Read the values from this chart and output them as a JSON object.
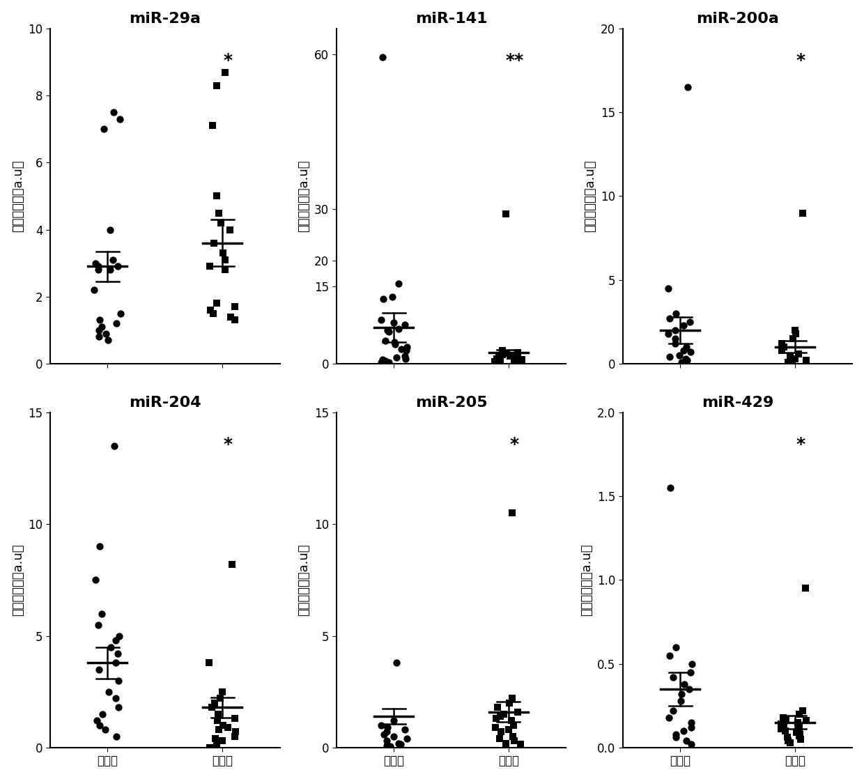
{
  "panels": [
    {
      "title": "miR-29a",
      "ylim": [
        0,
        10
      ],
      "yticks": [
        0,
        2,
        4,
        6,
        8,
        10
      ],
      "significance": "*",
      "group1": [
        7.0,
        7.3,
        7.5,
        4.0,
        2.8,
        2.9,
        3.0,
        2.9,
        2.8,
        3.1,
        2.2,
        1.5,
        1.2,
        1.3,
        1.0,
        0.8,
        1.1,
        0.7,
        0.9
      ],
      "group2": [
        8.3,
        8.7,
        7.1,
        5.0,
        4.5,
        4.2,
        4.0,
        3.6,
        3.3,
        3.1,
        2.9,
        2.8,
        1.5,
        1.6,
        1.7,
        1.3,
        1.4,
        1.8
      ],
      "mean1": 2.9,
      "sem1": 0.45,
      "mean2": 3.6,
      "sem2": 0.7
    },
    {
      "title": "miR-141",
      "ylim": [
        0,
        65
      ],
      "yticks": [
        0,
        15,
        20,
        30,
        60
      ],
      "significance": "**",
      "group1": [
        59.5,
        15.5,
        13.0,
        12.5,
        8.0,
        8.5,
        7.5,
        6.5,
        6.8,
        6.2,
        4.2,
        3.8,
        4.5,
        3.2,
        2.8,
        2.5,
        1.5,
        1.2,
        1.0,
        0.8,
        0.5,
        0.3,
        0.2
      ],
      "group2": [
        29.0,
        2.5,
        2.2,
        2.0,
        1.8,
        1.5,
        1.3,
        1.2,
        1.0,
        0.8,
        0.7,
        0.5,
        0.4,
        0.3,
        0.2,
        0.1
      ],
      "mean1": 7.0,
      "sem1": 2.8,
      "mean2": 2.2,
      "sem2": 0.5
    },
    {
      "title": "miR-200a",
      "ylim": [
        0,
        20
      ],
      "yticks": [
        0,
        5,
        10,
        15,
        20
      ],
      "significance": "*",
      "group1": [
        16.5,
        4.5,
        3.0,
        2.7,
        2.5,
        2.3,
        2.0,
        1.8,
        1.5,
        1.2,
        1.0,
        0.8,
        0.7,
        0.5,
        0.4,
        0.3,
        0.2,
        0.1
      ],
      "group2": [
        9.0,
        2.0,
        1.8,
        1.5,
        1.2,
        1.0,
        0.8,
        0.6,
        0.4,
        0.3,
        0.2,
        0.1,
        0.05
      ],
      "mean1": 2.0,
      "sem1": 0.8,
      "mean2": 1.0,
      "sem2": 0.35
    },
    {
      "title": "miR-204",
      "ylim": [
        0,
        15
      ],
      "yticks": [
        0,
        5,
        10,
        15
      ],
      "significance": "*",
      "group1": [
        13.5,
        9.0,
        7.5,
        6.0,
        5.5,
        5.0,
        4.8,
        4.5,
        4.2,
        3.8,
        3.5,
        3.0,
        2.5,
        2.2,
        1.8,
        1.5,
        1.2,
        1.0,
        0.8,
        0.5
      ],
      "group2": [
        8.2,
        3.8,
        2.5,
        2.2,
        2.0,
        1.8,
        1.5,
        1.3,
        1.2,
        1.0,
        0.9,
        0.8,
        0.7,
        0.5,
        0.4,
        0.3,
        0.2,
        0.1,
        0.0
      ],
      "mean1": 3.8,
      "sem1": 0.7,
      "mean2": 1.8,
      "sem2": 0.45
    },
    {
      "title": "miR-205",
      "ylim": [
        0,
        15
      ],
      "yticks": [
        0,
        5,
        10,
        15
      ],
      "significance": "*",
      "group1": [
        3.8,
        1.2,
        1.0,
        0.9,
        0.8,
        0.7,
        0.6,
        0.5,
        0.4,
        0.3,
        0.2,
        0.15,
        0.1,
        0.08,
        0.05
      ],
      "group2": [
        10.5,
        2.2,
        2.0,
        1.8,
        1.6,
        1.5,
        1.4,
        1.3,
        1.2,
        1.0,
        0.9,
        0.8,
        0.7,
        0.5,
        0.4,
        0.3,
        0.2,
        0.15
      ],
      "mean1": 1.4,
      "sem1": 0.35,
      "mean2": 1.6,
      "sem2": 0.45
    },
    {
      "title": "miR-429",
      "ylim": [
        0,
        2.0
      ],
      "yticks": [
        0.0,
        0.5,
        1.0,
        1.5,
        2.0
      ],
      "significance": "*",
      "group1": [
        1.55,
        0.6,
        0.55,
        0.5,
        0.45,
        0.42,
        0.38,
        0.35,
        0.32,
        0.28,
        0.22,
        0.18,
        0.15,
        0.12,
        0.1,
        0.08,
        0.06,
        0.04,
        0.02
      ],
      "group2": [
        0.95,
        0.22,
        0.2,
        0.18,
        0.17,
        0.16,
        0.15,
        0.14,
        0.13,
        0.12,
        0.11,
        0.1,
        0.09,
        0.08,
        0.07,
        0.06,
        0.05,
        0.04,
        0.03
      ],
      "mean1": 0.35,
      "sem1": 0.1,
      "mean2": 0.15,
      "sem2": 0.04
    }
  ],
  "xlabel_left": "治疗前",
  "xlabel_right": "治疗后",
  "ylabel": "相对表达量（a.u）",
  "markersize": 55,
  "title_fontsize": 16,
  "label_fontsize": 13,
  "tick_fontsize": 12,
  "sig_fontsize": 18
}
